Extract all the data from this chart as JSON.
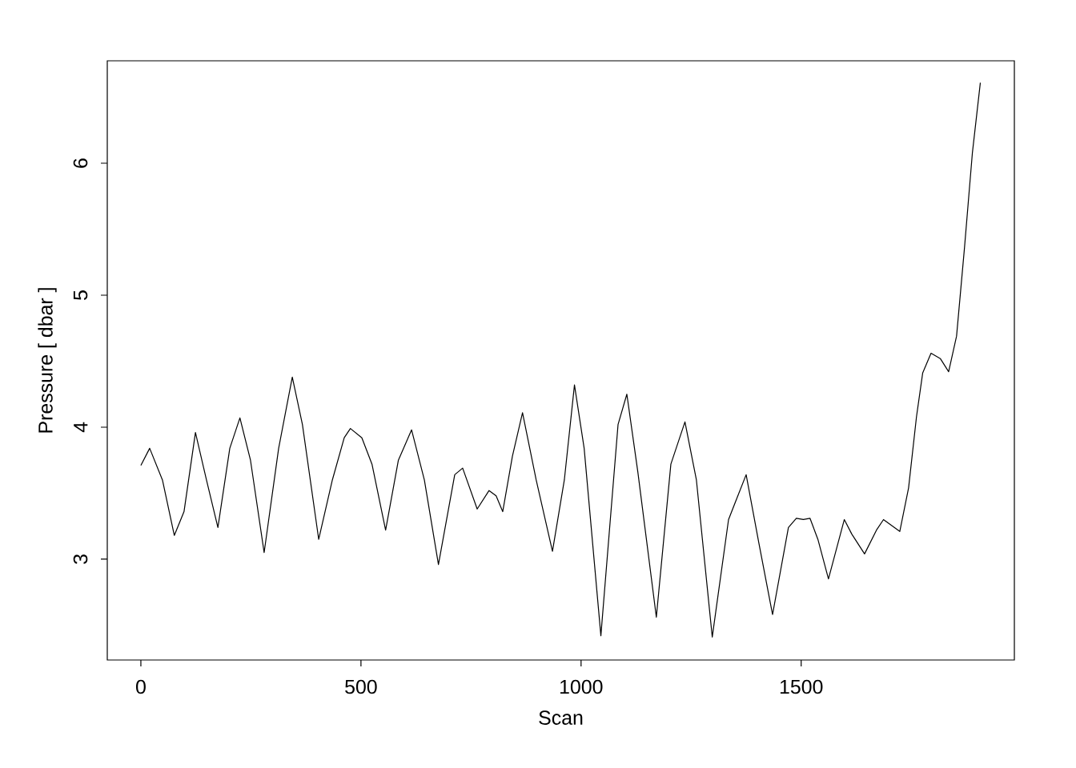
{
  "chart_data": {
    "type": "line",
    "xlabel": "Scan",
    "ylabel": "Pressure [ dbar ]",
    "x": [
      0,
      20,
      49,
      76,
      98,
      124,
      149,
      175,
      202,
      225,
      249,
      280,
      313,
      344,
      367,
      404,
      435,
      462,
      476,
      502,
      525,
      556,
      585,
      615,
      644,
      676,
      713,
      731,
      764,
      791,
      807,
      822,
      844,
      867,
      898,
      935,
      962,
      985,
      1007,
      1045,
      1084,
      1104,
      1129,
      1171,
      1204,
      1236,
      1262,
      1298,
      1335,
      1349,
      1375,
      1404,
      1435,
      1471,
      1489,
      1505,
      1520,
      1538,
      1562,
      1598,
      1615,
      1644,
      1671,
      1687,
      1724,
      1744,
      1762,
      1776,
      1795,
      1816,
      1835,
      1853,
      1871,
      1889,
      1907
    ],
    "series": [
      {
        "color": "#000000",
        "values": [
          3.71,
          3.84,
          3.6,
          3.18,
          3.36,
          3.96,
          3.6,
          3.24,
          3.84,
          4.07,
          3.75,
          3.05,
          3.84,
          4.38,
          4.02,
          3.15,
          3.6,
          3.92,
          3.99,
          3.92,
          3.72,
          3.22,
          3.75,
          3.98,
          3.6,
          2.96,
          3.64,
          3.69,
          3.38,
          3.52,
          3.48,
          3.36,
          3.78,
          4.11,
          3.6,
          3.06,
          3.6,
          4.32,
          3.84,
          2.42,
          4.02,
          4.25,
          3.66,
          2.56,
          3.72,
          4.04,
          3.6,
          2.41,
          3.3,
          3.42,
          3.64,
          3.12,
          2.58,
          3.24,
          3.31,
          3.3,
          3.31,
          3.15,
          2.85,
          3.3,
          3.19,
          3.04,
          3.22,
          3.3,
          3.21,
          3.54,
          4.08,
          4.41,
          4.56,
          4.52,
          4.42,
          4.69,
          5.36,
          6.08,
          6.61
        ]
      }
    ],
    "xlim": [
      -76.3,
      1984.3
    ],
    "ylim": [
      2.236,
      6.776
    ],
    "xticks": [
      0,
      500,
      1000,
      1500
    ],
    "yticks": [
      3,
      4,
      5,
      6
    ],
    "grid": false,
    "marker": "none",
    "line_style": "solid"
  }
}
